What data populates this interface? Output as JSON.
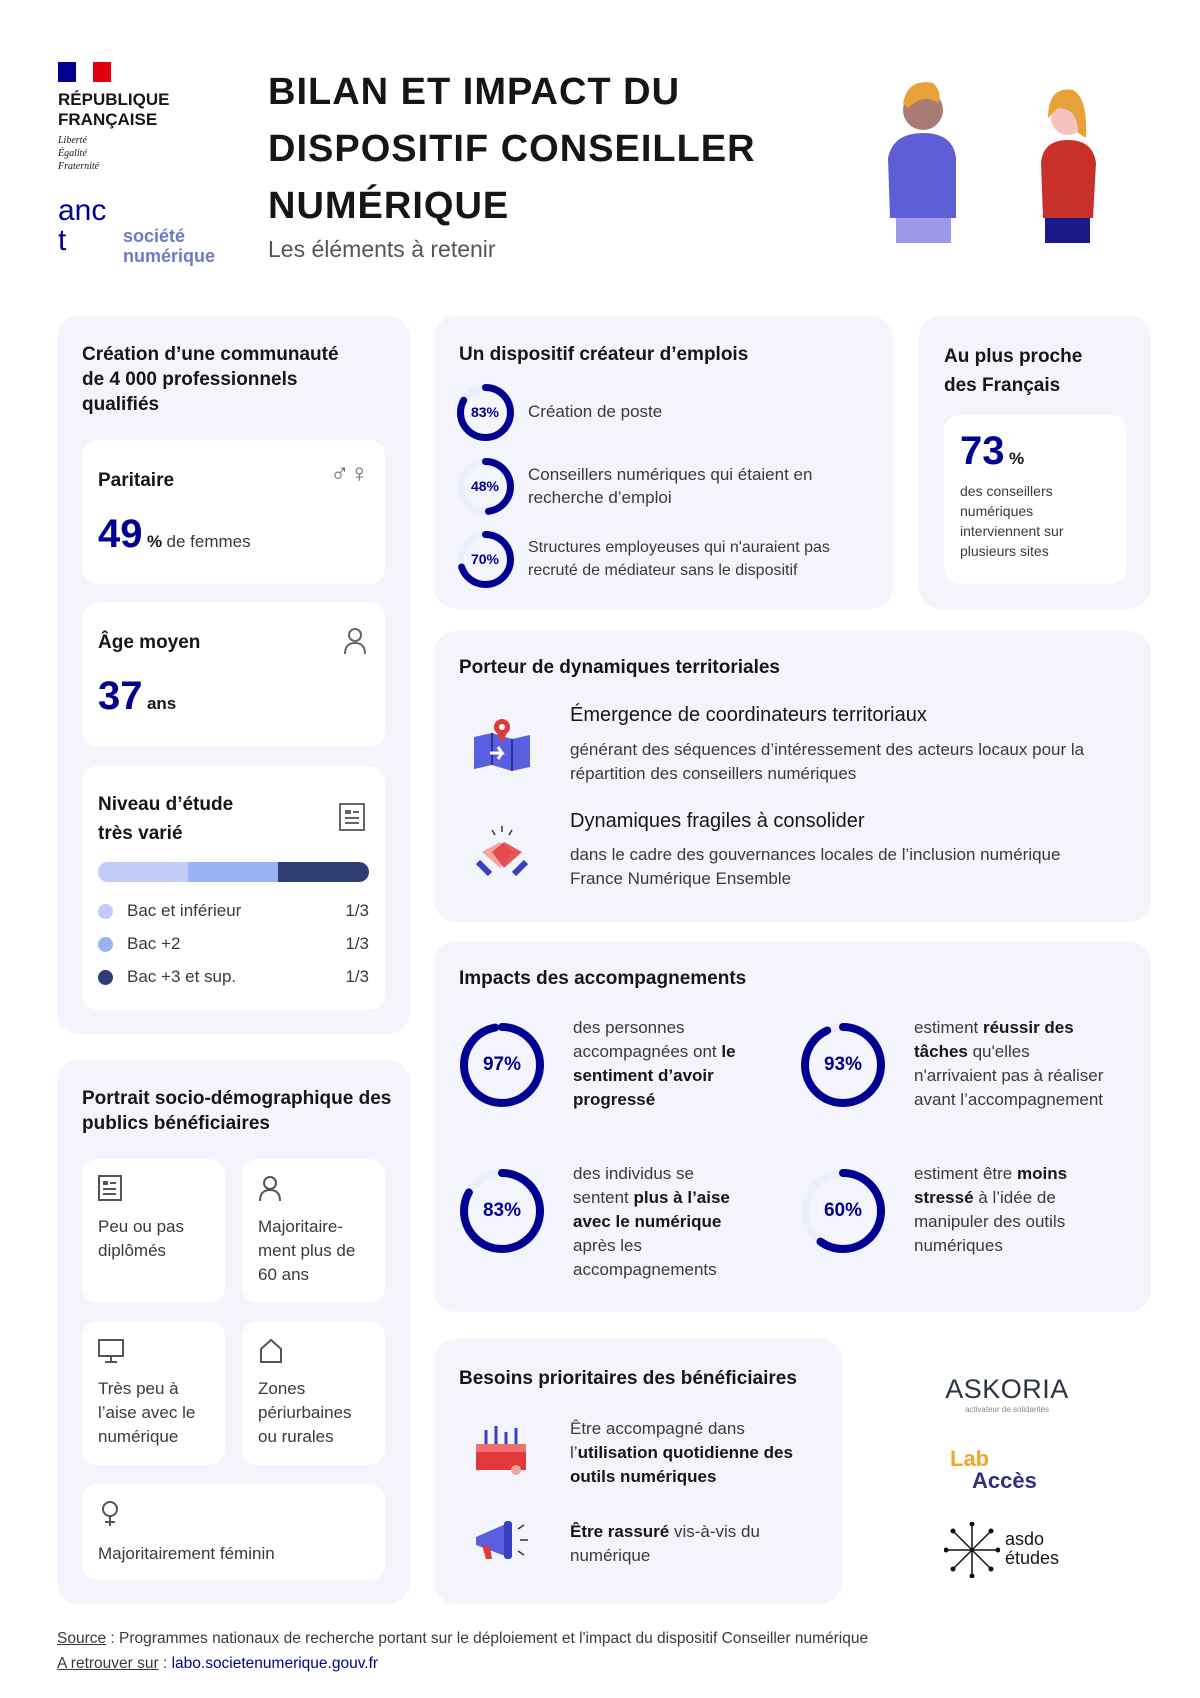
{
  "header": {
    "rf": {
      "line1": "RÉPUBLIQUE",
      "line2": "FRANÇAISE",
      "motto": [
        "Liberté",
        "Égalité",
        "Fraternité"
      ]
    },
    "anct": {
      "logo": "anct",
      "sub1": "société",
      "sub2": "numérique"
    },
    "title": [
      "BILAN ET IMPACT DU",
      "DISPOSITIF CONSEILLER",
      "NUMÉRIQUE"
    ],
    "subtitle": "Les éléments à retenir"
  },
  "colors": {
    "accent": "#000091",
    "card_bg": "#f4f5fc",
    "bar1": "#c2cdf7",
    "bar2": "#98b2f3",
    "bar3": "#2e3d72",
    "track": "#eceefa"
  },
  "communaute": {
    "title": "Création d’une communauté de 4 000 professionnels qualifiés",
    "paritaire": {
      "label": "Paritaire",
      "value": "49",
      "unit": "%",
      "suffix": "de femmes",
      "icon": "gender-icon"
    },
    "age": {
      "label": "Âge moyen",
      "value": "37",
      "suffix": "ans",
      "icon": "user-icon"
    },
    "etude": {
      "label": "Niveau d’étude très varié",
      "icon": "document-icon",
      "items": [
        {
          "label": "Bac et inférieur",
          "value": "1/3",
          "share": 0.333
        },
        {
          "label": "Bac +2",
          "value": "1/3",
          "share": 0.333
        },
        {
          "label": "Bac +3 et sup.",
          "value": "1/3",
          "share": 0.334
        }
      ]
    }
  },
  "emplois": {
    "title": "Un dispositif créateur d’emplois",
    "items": [
      {
        "pct": 83,
        "label": "83%",
        "text": "Création de poste"
      },
      {
        "pct": 48,
        "label": "48%",
        "text": "Conseillers numériques qui étaient en recherche d’emploi"
      },
      {
        "pct": 70,
        "label": "70%",
        "text": "Structures employeuses qui n'auraient pas recruté de médiateur sans le dispositif"
      }
    ]
  },
  "proche": {
    "title": "Au plus proche des Français",
    "value": "73",
    "unit": "%",
    "text": "des conseillers numériques interviennent sur plusieurs sites"
  },
  "porteur": {
    "title": "Porteur de dynamiques territoriales",
    "items": [
      {
        "heading": "Émergence de coordinateurs territoriaux",
        "text": "générant des séquences d’intéressement des acteurs locaux pour la répartition des conseillers numériques",
        "icon": "map-pin-icon"
      },
      {
        "heading": "Dynamiques fragiles à consolider",
        "text": "dans le cadre des gouvernances locales de l’inclusion numérique France Numérique Ensemble",
        "icon": "handshake-icon"
      }
    ]
  },
  "impacts": {
    "title": "Impacts des accompagnements",
    "items": [
      {
        "pct": 97,
        "label": "97%",
        "parts": [
          [
            "des personnes accompagnées ont ",
            false
          ],
          [
            "le sentiment d’avoir progressé",
            true
          ]
        ]
      },
      {
        "pct": 93,
        "label": "93%",
        "parts": [
          [
            "estiment ",
            false
          ],
          [
            "réussir des tâches",
            true
          ],
          [
            " qu'elles n'arrivaient pas à réaliser avant l’accompagnement",
            false
          ]
        ]
      },
      {
        "pct": 83,
        "label": "83%",
        "parts": [
          [
            "des individus se sentent ",
            false
          ],
          [
            "plus à l’aise avec le numérique",
            true
          ],
          [
            " après les accompagnements",
            false
          ]
        ]
      },
      {
        "pct": 60,
        "label": "60%",
        "parts": [
          [
            "estiment être ",
            false
          ],
          [
            "moins stressé",
            true
          ],
          [
            " à l’idée de manipuler des outils numériques",
            false
          ]
        ]
      }
    ]
  },
  "portrait": {
    "title": "Portrait socio-démographique des publics bénéficiaires",
    "tiles": [
      {
        "text": "Peu ou pas diplômés",
        "icon": "document-icon"
      },
      {
        "text": "Majoritaire-ment plus de 60 ans",
        "icon": "user-icon"
      },
      {
        "text": "Très peu à l’aise avec le numérique",
        "icon": "monitor-icon"
      },
      {
        "text": "Zones périurbaines ou rurales",
        "icon": "home-icon"
      },
      {
        "text": "Majoritairement féminin",
        "icon": "female-icon"
      }
    ]
  },
  "besoins": {
    "title": "Besoins prioritaires des bénéficiaires",
    "items": [
      {
        "parts": [
          [
            "Être accompagné dans l’",
            false
          ],
          [
            "utilisation quotidienne des outils numériques",
            true
          ]
        ],
        "icon": "toolbox-icon"
      },
      {
        "parts": [
          [
            "Être rassuré",
            true
          ],
          [
            " vis-à-vis du numérique",
            false
          ]
        ],
        "icon": "megaphone-icon"
      }
    ]
  },
  "partners": {
    "askoria": "ASKORIA",
    "askoria_sub": "activateur de solidarités",
    "lab": "Lab",
    "acces": "Accès",
    "asdo1": "asdo",
    "asdo2": "études"
  },
  "footer": {
    "source_label": "Source",
    "source_text": " : Programmes nationaux de recherche portant sur le déploiement et l'impact du dispositif Conseiller numérique",
    "link_label": "A retrouver sur",
    "link": "labo.societenumerique.gouv.fr"
  }
}
